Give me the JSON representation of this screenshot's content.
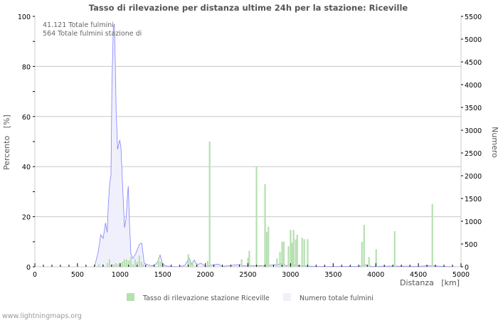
{
  "chart_data": {
    "type": "bar+area",
    "title": "Tasso di rilevazione per distanza ultime 24h per la stazione: Riceville",
    "xlabel": "Distanza   [km]",
    "ylabel_left": "Percento   [%]",
    "ylabel_right": "Numero",
    "xlim": [
      0,
      5000
    ],
    "ylim_left": [
      0,
      100
    ],
    "ylim_right": [
      0,
      5500
    ],
    "x_ticks": [
      0,
      500,
      1000,
      1500,
      2000,
      2500,
      3000,
      3500,
      4000,
      4500,
      5000
    ],
    "y_left_ticks": [
      0,
      20,
      40,
      60,
      80,
      100
    ],
    "y_right_ticks": [
      0,
      500,
      1000,
      1500,
      2000,
      2500,
      3000,
      3500,
      4000,
      4500,
      5000,
      5500
    ],
    "grid": true,
    "annotations": [
      "41.121 Totale fulmini",
      "564 Totale fulmini stazione di"
    ],
    "legend": {
      "placement": "bottom",
      "entries": [
        "Tasso di rilevazione stazione Riceville",
        "Numero totale fulmini"
      ]
    },
    "series": [
      {
        "name": "Tasso di rilevazione stazione Riceville",
        "type": "bar",
        "axis": "left",
        "color": "#b5e0b0",
        "points": [
          [
            750,
            1
          ],
          [
            800,
            1
          ],
          [
            850,
            1.5
          ],
          [
            875,
            3
          ],
          [
            900,
            1
          ],
          [
            925,
            1
          ],
          [
            950,
            1.5
          ],
          [
            975,
            1
          ],
          [
            1000,
            1.5
          ],
          [
            1025,
            2
          ],
          [
            1050,
            3
          ],
          [
            1075,
            3
          ],
          [
            1100,
            2.5
          ],
          [
            1125,
            4
          ],
          [
            1150,
            1
          ],
          [
            1175,
            3
          ],
          [
            1200,
            2
          ],
          [
            1225,
            4.5
          ],
          [
            1250,
            2
          ],
          [
            1275,
            1
          ],
          [
            1450,
            3.5
          ],
          [
            1475,
            2
          ],
          [
            1500,
            1.5
          ],
          [
            1800,
            5
          ],
          [
            1825,
            2
          ],
          [
            1850,
            2
          ],
          [
            1900,
            1.5
          ],
          [
            2025,
            2.3
          ],
          [
            2050,
            50
          ],
          [
            2425,
            3
          ],
          [
            2500,
            3.6
          ],
          [
            2515,
            6.4
          ],
          [
            2600,
            40
          ],
          [
            2700,
            33
          ],
          [
            2720,
            14
          ],
          [
            2740,
            16
          ],
          [
            2840,
            3.4
          ],
          [
            2875,
            6
          ],
          [
            2900,
            10
          ],
          [
            2920,
            10
          ],
          [
            2975,
            8.2
          ],
          [
            3000,
            14.7
          ],
          [
            3018,
            9.6
          ],
          [
            3035,
            14.7
          ],
          [
            3060,
            10.9
          ],
          [
            3077,
            12.8
          ],
          [
            3135,
            11.6
          ],
          [
            3160,
            11
          ],
          [
            3200,
            11
          ],
          [
            3837,
            10
          ],
          [
            3862,
            16.8
          ],
          [
            3920,
            3.9
          ],
          [
            4004,
            7
          ],
          [
            4221,
            14.2
          ],
          [
            4663,
            25
          ]
        ]
      },
      {
        "name": "Numero totale fulmini",
        "type": "area",
        "axis": "right",
        "color": "#8080ff",
        "fill": "#f0f0fc",
        "points": [
          [
            600,
            0
          ],
          [
            690,
            0
          ],
          [
            704,
            27
          ],
          [
            745,
            340
          ],
          [
            773,
            703
          ],
          [
            801,
            625
          ],
          [
            829,
            964
          ],
          [
            849,
            755
          ],
          [
            862,
            1380
          ],
          [
            879,
            1848
          ],
          [
            893,
            2005
          ],
          [
            904,
            3984
          ],
          [
            921,
            5234
          ],
          [
            932,
            5339
          ],
          [
            943,
            4505
          ],
          [
            954,
            3411
          ],
          [
            971,
            2578
          ],
          [
            996,
            2786
          ],
          [
            1010,
            2630
          ],
          [
            1024,
            2005
          ],
          [
            1052,
            859
          ],
          [
            1071,
            1067
          ],
          [
            1088,
            1589
          ],
          [
            1096,
            1771
          ],
          [
            1110,
            964
          ],
          [
            1127,
            286
          ],
          [
            1149,
            183
          ],
          [
            1183,
            286
          ],
          [
            1227,
            495
          ],
          [
            1255,
            520
          ],
          [
            1283,
            78
          ],
          [
            1330,
            40
          ],
          [
            1380,
            20
          ],
          [
            1420,
            60
          ],
          [
            1445,
            120
          ],
          [
            1469,
            260
          ],
          [
            1495,
            80
          ],
          [
            1530,
            20
          ],
          [
            1600,
            10
          ],
          [
            1700,
            5
          ],
          [
            1760,
            30
          ],
          [
            1810,
            190
          ],
          [
            1840,
            60
          ],
          [
            1870,
            150
          ],
          [
            1900,
            40
          ],
          [
            1950,
            80
          ],
          [
            2000,
            10
          ],
          [
            2150,
            60
          ],
          [
            2200,
            10
          ],
          [
            2400,
            50
          ],
          [
            2450,
            20
          ],
          [
            2500,
            30
          ],
          [
            2700,
            20
          ],
          [
            2850,
            50
          ],
          [
            2900,
            80
          ],
          [
            2950,
            20
          ],
          [
            3000,
            60
          ],
          [
            3050,
            40
          ],
          [
            3100,
            20
          ],
          [
            3300,
            10
          ],
          [
            3800,
            10
          ],
          [
            3880,
            40
          ],
          [
            3950,
            10
          ],
          [
            4200,
            15
          ],
          [
            4500,
            10
          ],
          [
            4600,
            20
          ],
          [
            5000,
            0
          ]
        ]
      }
    ]
  },
  "footer": "www.lightningmaps.org"
}
